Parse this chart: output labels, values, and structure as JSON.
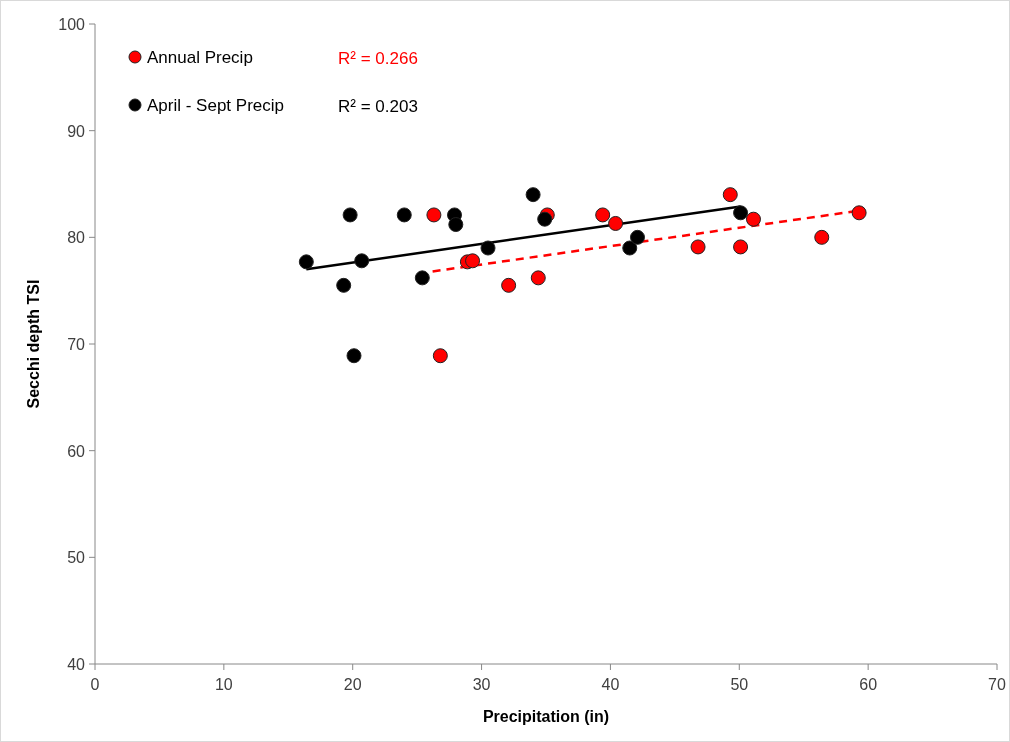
{
  "chart_data": {
    "type": "scatter",
    "xlabel": "Precipitation (in)",
    "ylabel": "Secchi depth TSI",
    "xlim": [
      0,
      70
    ],
    "xticks": [
      0,
      10,
      20,
      30,
      40,
      50,
      60,
      70
    ],
    "ylim": [
      40,
      100
    ],
    "yticks": [
      40,
      50,
      60,
      70,
      80,
      90,
      100
    ],
    "grid": false,
    "legend": "top left",
    "marker": "circle",
    "annotations": [
      "R² = 0.266",
      "R² = 0.203"
    ],
    "series": [
      {
        "name": "Annual Precip",
        "color": "#ff0000",
        "x": [
          26.3,
          28.9,
          29.3,
          32.1,
          26.8,
          34.4,
          35.1,
          39.4,
          40.4,
          46.8,
          49.3,
          50.1,
          51.1,
          56.4,
          59.3
        ],
        "values": [
          82.1,
          77.7,
          77.8,
          75.5,
          68.9,
          76.2,
          82.1,
          82.1,
          81.3,
          79.1,
          84.0,
          79.1,
          81.7,
          80.0,
          82.3
        ]
      },
      {
        "name": "April - Sept Precip",
        "color": "#000000",
        "x": [
          16.4,
          19.3,
          19.8,
          20.1,
          20.7,
          24.0,
          25.4,
          27.9,
          28.0,
          30.5,
          34.0,
          34.9,
          41.5,
          42.1,
          50.1
        ],
        "values": [
          77.7,
          75.5,
          82.1,
          68.9,
          77.8,
          82.1,
          76.2,
          82.1,
          81.2,
          79.0,
          84.0,
          81.7,
          79.0,
          80.0,
          82.3
        ]
      },
      {
        "type": "line",
        "color": "#ff0000",
        "line_style": "dashed",
        "marker": "none",
        "x": [
          26.2,
          59.3
        ],
        "values": [
          76.8,
          82.5
        ]
      },
      {
        "type": "line",
        "color": "#000000",
        "line_style": "solid",
        "marker": "none",
        "x": [
          16.4,
          50.1
        ],
        "values": [
          77.0,
          82.9
        ]
      }
    ]
  }
}
